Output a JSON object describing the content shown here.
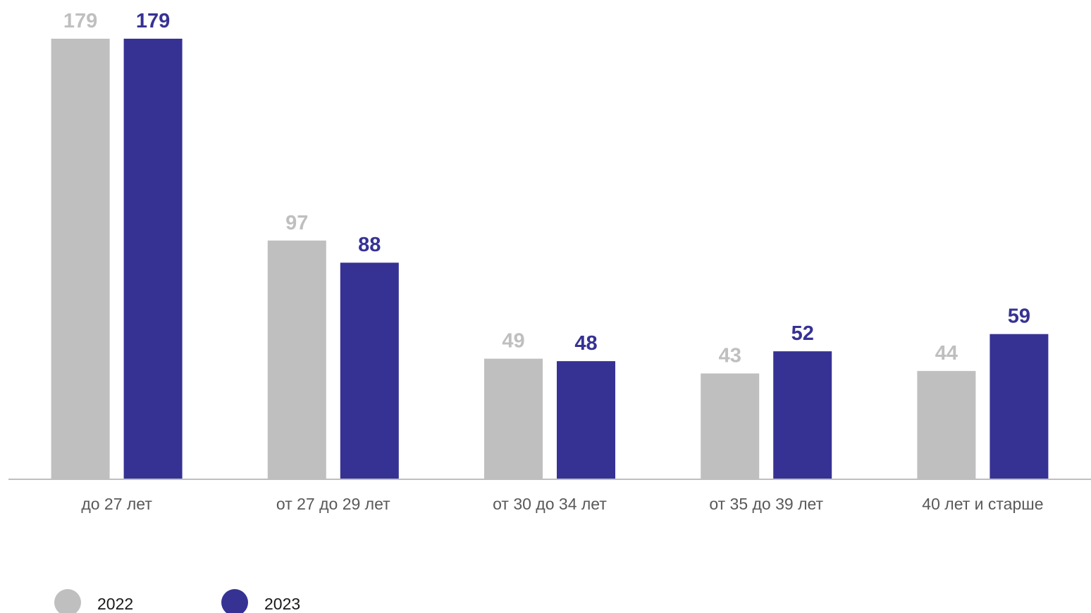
{
  "chart_data": {
    "type": "bar",
    "categories": [
      "до 27 лет",
      "от 27 до 29 лет",
      "от 30 до 34 лет",
      "от 35 до 39 лет",
      "40 лет и старше"
    ],
    "series": [
      {
        "name": "2022",
        "values": [
          179,
          97,
          49,
          43,
          44
        ],
        "color": "#bfbfbf"
      },
      {
        "name": "2023",
        "values": [
          179,
          88,
          48,
          52,
          59
        ],
        "color": "#363294"
      }
    ],
    "title": "",
    "xlabel": "",
    "ylabel": "",
    "ylim": [
      0,
      179
    ],
    "grid": false,
    "data_labels": true,
    "legend_position": "bottom-left",
    "axis_color": "#bfbfbf"
  }
}
